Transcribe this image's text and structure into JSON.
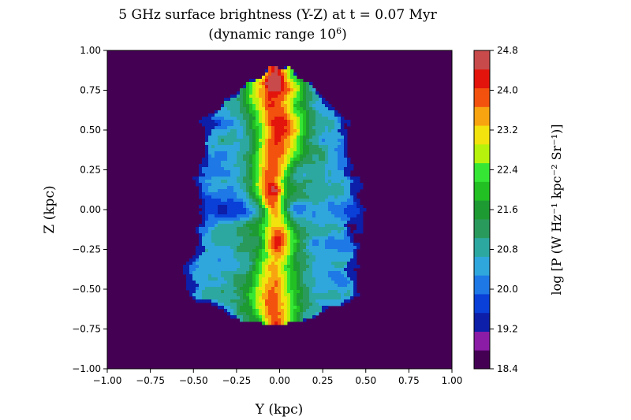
{
  "chart_data": {
    "type": "heatmap",
    "title_line1": "5 GHz surface brightness (Y-Z) at t = 0.07 Myr",
    "title_line2_prefix": "(dynamic range 10",
    "title_line2_exp": "6",
    "title_line2_suffix": ")",
    "xlabel": "Y (kpc)",
    "ylabel": "Z (kpc)",
    "xlim": [
      -1.0,
      1.0
    ],
    "ylim": [
      -1.0,
      1.0
    ],
    "xticks": [
      "−1.00",
      "−0.75",
      "−0.50",
      "−0.25",
      "0.00",
      "0.25",
      "0.50",
      "0.75",
      "1.00"
    ],
    "yticks": [
      "−1.00",
      "−0.75",
      "−0.50",
      "−0.25",
      "0.00",
      "0.25",
      "0.50",
      "0.75",
      "1.00"
    ],
    "xtick_values": [
      -1.0,
      -0.75,
      -0.5,
      -0.25,
      0.0,
      0.25,
      0.5,
      0.75,
      1.0
    ],
    "ytick_values": [
      -1.0,
      -0.75,
      -0.5,
      -0.25,
      0.0,
      0.25,
      0.5,
      0.75,
      1.0
    ],
    "colorbar": {
      "label": "log [P (W Hz⁻¹ kpc⁻² Sr⁻¹)]",
      "min": 18.4,
      "max": 24.8,
      "ticks": [
        "18.4",
        "19.2",
        "20.0",
        "20.8",
        "21.6",
        "22.4",
        "23.2",
        "24.0",
        "24.8"
      ],
      "tick_values": [
        18.4,
        19.2,
        20.0,
        20.8,
        21.6,
        22.4,
        23.2,
        24.0,
        24.8
      ],
      "levels": 16,
      "colors": [
        "#440154",
        "#8a1ca6",
        "#0d1ea8",
        "#0a3fd8",
        "#1e78e6",
        "#2fa6dc",
        "#2ca8a0",
        "#2a9a5c",
        "#1e9a32",
        "#22c022",
        "#35e635",
        "#b6f20c",
        "#f2e20e",
        "#f8a410",
        "#f2520e",
        "#e3140c",
        "#c84a4a"
      ]
    },
    "background_value": 18.4,
    "description_features": {
      "lobe_extent_y": [
        -0.5,
        0.5
      ],
      "lobe_extent_z": [
        -0.72,
        0.9
      ],
      "jet_axis_y": -0.03,
      "peak_regions_z": [
        0.8,
        0.12,
        -0.2
      ]
    }
  }
}
